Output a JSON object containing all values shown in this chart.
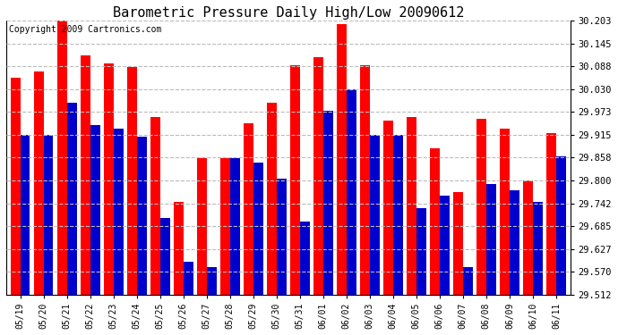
{
  "title": "Barometric Pressure Daily High/Low 20090612",
  "copyright": "Copyright 2009 Cartronics.com",
  "dates": [
    "05/19",
    "05/20",
    "05/21",
    "05/22",
    "05/23",
    "05/24",
    "05/25",
    "05/26",
    "05/27",
    "05/28",
    "05/29",
    "05/30",
    "05/31",
    "06/01",
    "06/02",
    "06/03",
    "06/04",
    "06/05",
    "06/06",
    "06/07",
    "06/08",
    "06/09",
    "06/10",
    "06/11"
  ],
  "highs": [
    30.06,
    30.075,
    30.23,
    30.115,
    30.095,
    30.085,
    29.96,
    29.745,
    29.855,
    29.855,
    29.945,
    29.995,
    30.09,
    30.11,
    30.195,
    30.09,
    29.95,
    29.96,
    29.88,
    29.77,
    29.955,
    29.93,
    29.8,
    29.92
  ],
  "lows": [
    29.915,
    29.915,
    29.995,
    29.94,
    29.93,
    29.91,
    29.705,
    29.595,
    29.582,
    29.855,
    29.845,
    29.805,
    29.695,
    29.975,
    30.03,
    29.915,
    29.915,
    29.73,
    29.762,
    29.582,
    29.79,
    29.775,
    29.745,
    29.86
  ],
  "high_color": "#ff0000",
  "low_color": "#0000cc",
  "ylim_min": 29.512,
  "ylim_max": 30.203,
  "yticks": [
    29.512,
    29.57,
    29.627,
    29.685,
    29.742,
    29.8,
    29.858,
    29.915,
    29.973,
    30.03,
    30.088,
    30.145,
    30.203
  ],
  "bg_color": "#ffffff",
  "grid_color": "#bbbbbb",
  "title_fontsize": 11,
  "copyright_fontsize": 7,
  "bar_width": 0.42
}
